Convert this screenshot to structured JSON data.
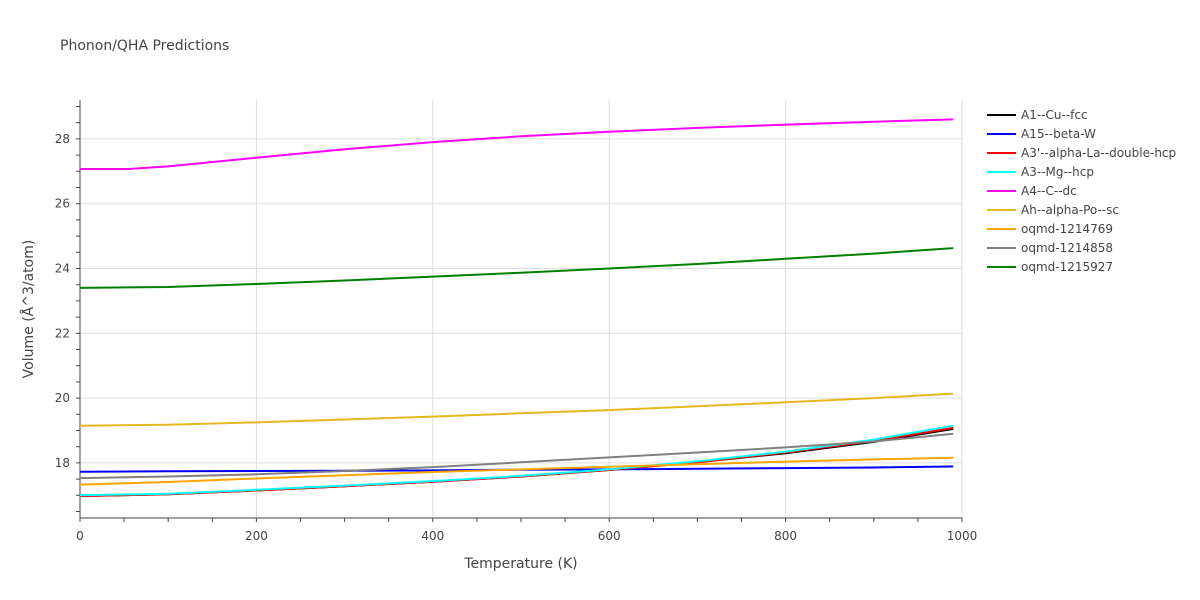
{
  "chart_data": {
    "type": "line",
    "title": "Phonon/QHA Predictions",
    "xlabel": "Temperature (K)",
    "ylabel": "Volume (Å^3/atom)",
    "xlim": [
      0,
      1000
    ],
    "ylim": [
      16.3,
      29.2
    ],
    "x_ticks": [
      0,
      200,
      400,
      600,
      800,
      1000
    ],
    "y_ticks": [
      18,
      20,
      22,
      24,
      26,
      28
    ],
    "grid": true,
    "legend_position": "right",
    "series": [
      {
        "name": "A1--Cu--fcc",
        "color": "#000000",
        "x": [
          0,
          100,
          200,
          300,
          400,
          500,
          600,
          700,
          800,
          900,
          990
        ],
        "y": [
          16.98,
          17.03,
          17.15,
          17.28,
          17.42,
          17.58,
          17.78,
          18.02,
          18.3,
          18.65,
          19.05
        ]
      },
      {
        "name": "A15--beta-W",
        "color": "#0000ff",
        "x": [
          0,
          100,
          200,
          300,
          400,
          500,
          600,
          700,
          800,
          900,
          990
        ],
        "y": [
          17.73,
          17.74,
          17.75,
          17.76,
          17.77,
          17.79,
          17.8,
          17.82,
          17.84,
          17.86,
          17.89
        ]
      },
      {
        "name": "A3'--alpha-La--double-hcp",
        "color": "#ff0000",
        "x": [
          0,
          100,
          200,
          300,
          400,
          500,
          600,
          700,
          800,
          900,
          990
        ],
        "y": [
          16.98,
          17.03,
          17.15,
          17.28,
          17.42,
          17.58,
          17.78,
          18.02,
          18.32,
          18.68,
          19.08
        ]
      },
      {
        "name": "A3--Mg--hcp",
        "color": "#00ffff",
        "x": [
          0,
          100,
          200,
          300,
          400,
          500,
          600,
          700,
          800,
          900,
          990
        ],
        "y": [
          17.0,
          17.05,
          17.17,
          17.3,
          17.44,
          17.6,
          17.8,
          18.05,
          18.35,
          18.72,
          19.15
        ]
      },
      {
        "name": "A4--C--dc",
        "color": "#ff00ff",
        "x": [
          0,
          55,
          100,
          200,
          300,
          400,
          500,
          600,
          700,
          800,
          900,
          990
        ],
        "y": [
          27.07,
          27.07,
          27.15,
          27.42,
          27.68,
          27.9,
          28.08,
          28.22,
          28.34,
          28.44,
          28.53,
          28.6
        ]
      },
      {
        "name": "Ah--alpha-Po--sc",
        "color": "#e6b820",
        "x": [
          0,
          100,
          200,
          300,
          400,
          500,
          600,
          700,
          800,
          900,
          990
        ],
        "y": [
          19.15,
          19.18,
          19.25,
          19.34,
          19.43,
          19.53,
          19.63,
          19.75,
          19.87,
          20.0,
          20.14
        ]
      },
      {
        "name": "oqmd-1214769",
        "color": "#ffa500",
        "x": [
          0,
          100,
          200,
          300,
          400,
          500,
          600,
          700,
          800,
          900,
          990
        ],
        "y": [
          17.33,
          17.41,
          17.52,
          17.62,
          17.72,
          17.8,
          17.88,
          17.96,
          18.04,
          18.11,
          18.16
        ]
      },
      {
        "name": "oqmd-1214858",
        "color": "#808080",
        "x": [
          0,
          100,
          200,
          300,
          400,
          500,
          600,
          700,
          800,
          900,
          990
        ],
        "y": [
          17.53,
          17.58,
          17.65,
          17.75,
          17.87,
          18.02,
          18.17,
          18.32,
          18.48,
          18.66,
          18.9
        ]
      },
      {
        "name": "oqmd-1215927",
        "color": "#008000",
        "x": [
          0,
          100,
          200,
          300,
          400,
          500,
          600,
          700,
          800,
          900,
          990
        ],
        "y": [
          23.4,
          23.43,
          23.52,
          23.63,
          23.75,
          23.87,
          24.0,
          24.14,
          24.3,
          24.46,
          24.63
        ]
      }
    ]
  }
}
